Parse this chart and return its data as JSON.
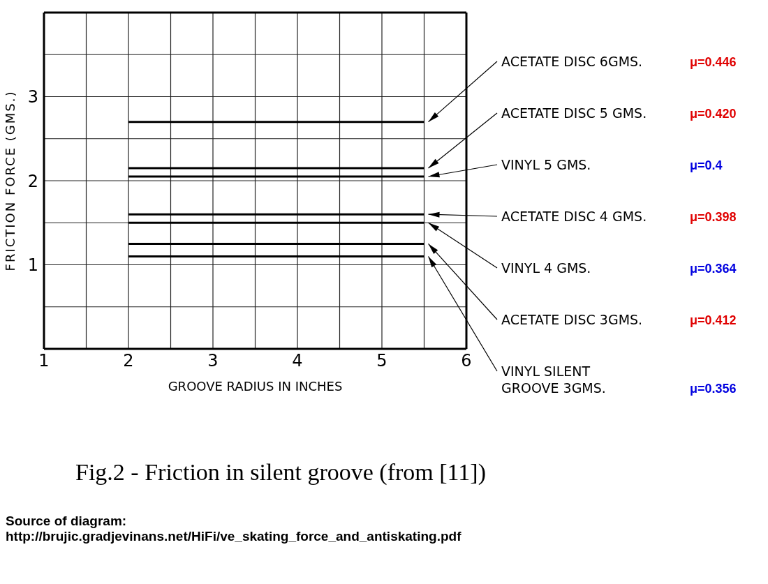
{
  "chart_data": {
    "type": "line",
    "title": "Fig.2 -  Friction in silent groove (from [11])",
    "xlabel": "GROOVE RADIUS IN INCHES",
    "ylabel": "FRICTION FORCE (GMS.)",
    "xlim": [
      1,
      6
    ],
    "xticks": [
      1,
      {
        "value": 1.5,
        "label": null
      },
      2,
      {
        "value": 2.5,
        "label": null
      },
      3,
      {
        "value": 3.5,
        "label": null
      },
      4,
      {
        "value": 4.5,
        "label": null
      },
      5,
      {
        "value": 5.5,
        "label": null
      },
      6
    ],
    "ylim": [
      0,
      4
    ],
    "yticks": [
      {
        "value": 0.5,
        "label": null
      },
      1,
      {
        "value": 1.5,
        "label": null
      },
      2,
      {
        "value": 2.5,
        "label": null
      },
      3,
      {
        "value": 3.5,
        "label": null
      }
    ],
    "grid": true,
    "marker": "none",
    "line_style": "solid",
    "x": [
      2,
      5.5
    ],
    "series": [
      {
        "name": "ACETATE DISC 6GMS.",
        "color": "#000000",
        "values": [
          2.7,
          2.7
        ]
      },
      {
        "name": "ACETATE DISC 5 GMS.",
        "color": "#000000",
        "values": [
          2.15,
          2.15
        ]
      },
      {
        "name": "VINYL  5 GMS.",
        "color": "#000000",
        "values": [
          2.05,
          2.05
        ]
      },
      {
        "name": "ACETATE DISC 4 GMS.",
        "color": "#000000",
        "values": [
          1.6,
          1.6
        ]
      },
      {
        "name": "VINYL  4 GMS.",
        "color": "#000000",
        "values": [
          1.5,
          1.5
        ]
      },
      {
        "name": "ACETATE DISC 3GMS.",
        "color": "#000000",
        "values": [
          1.25,
          1.25
        ]
      },
      {
        "name": "VINYL SILENT GROOVE 3GMS.",
        "color": "#000000",
        "values": [
          1.1,
          1.1
        ]
      }
    ],
    "annotations": [
      "μ=0.446",
      "μ=0.420",
      "μ=0.4",
      "μ=0.398",
      "μ=0.364",
      "μ=0.412",
      "μ=0.356",
      "Source of diagram:",
      "http://brujic.gradjevinans.net/HiFi/ve_skating_force_and_antiskating.pdf"
    ]
  }
}
